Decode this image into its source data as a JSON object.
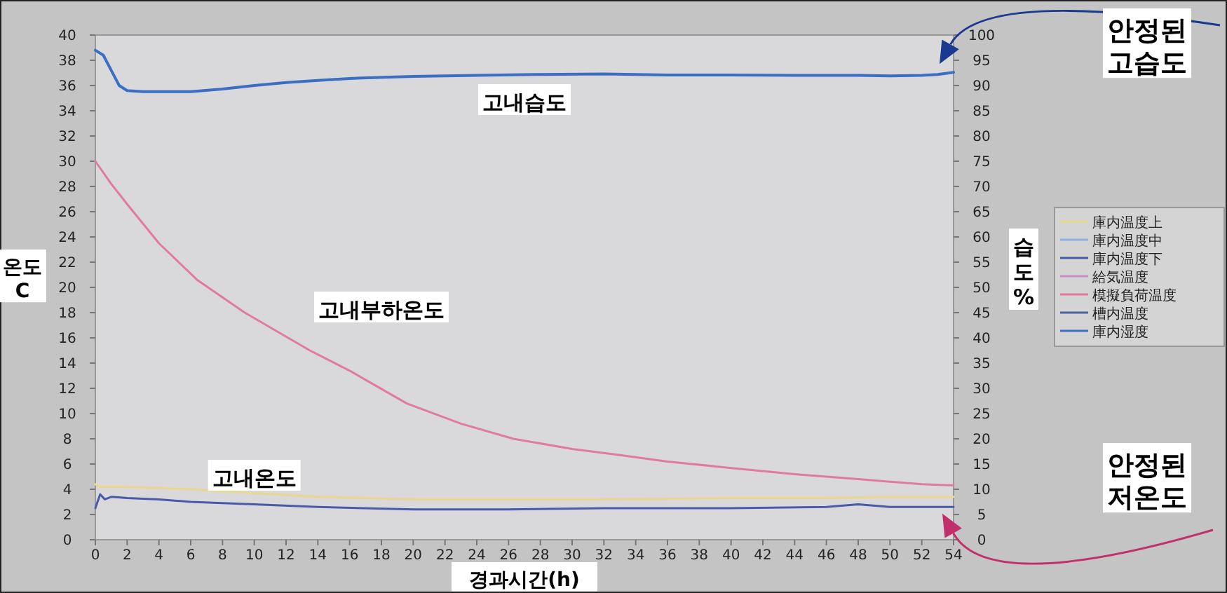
{
  "chart_data": {
    "type": "line",
    "xlabel": "경과시간(h)",
    "ylabel": "온도 C",
    "y2label": "습도 %",
    "xlim": [
      0,
      54
    ],
    "xticks": [
      0,
      2,
      4,
      6,
      8,
      10,
      12,
      14,
      16,
      18,
      20,
      22,
      24,
      26,
      28,
      30,
      32,
      34,
      36,
      38,
      40,
      42,
      44,
      46,
      48,
      50,
      52,
      54
    ],
    "ylim": [
      0,
      40
    ],
    "yticks": [
      0,
      2,
      4,
      6,
      8,
      10,
      12,
      14,
      16,
      18,
      20,
      22,
      24,
      26,
      28,
      30,
      32,
      34,
      36,
      38,
      40
    ],
    "y2lim": [
      0,
      100
    ],
    "y2ticks": [
      0,
      5,
      10,
      15,
      20,
      25,
      30,
      35,
      40,
      45,
      50,
      55,
      60,
      65,
      70,
      75,
      80,
      85,
      90,
      95,
      100
    ],
    "legend": "right",
    "marker": "none",
    "line_style": "solid",
    "series": [
      {
        "name": "庫内温度上",
        "color": "#e8d890",
        "x": [
          0,
          0.3,
          2,
          6,
          10,
          14,
          20,
          26,
          32,
          40,
          46,
          50,
          54
        ],
        "values": [
          4.4,
          4.2,
          4.2,
          4,
          3.7,
          3.4,
          3.2,
          3.2,
          3.2,
          3.3,
          3.3,
          3.4,
          3.4
        ]
      },
      {
        "name": "庫内温度中",
        "color": "#8fb0e0",
        "values": [
          null
        ]
      },
      {
        "name": "庫内温度下",
        "color": "#4a5aa8",
        "x": [
          0,
          0.3,
          0.6,
          1,
          2,
          4,
          6,
          10,
          14,
          20,
          26,
          32,
          40,
          46,
          48,
          50,
          54
        ],
        "values": [
          2.5,
          3.6,
          3.2,
          3.4,
          3.3,
          3.2,
          3.0,
          2.8,
          2.6,
          2.4,
          2.4,
          2.5,
          2.5,
          2.6,
          2.8,
          2.6,
          2.6
        ]
      },
      {
        "name": "給気温度",
        "color": "#c890c0",
        "values": [
          null
        ]
      },
      {
        "name": "模擬負荷温度",
        "color": "#e07aa0",
        "x": [
          0,
          1,
          2,
          4,
          6.4,
          9.4,
          13.5,
          16,
          19.6,
          23,
          26.3,
          30,
          33.1,
          36,
          39.9,
          44,
          48,
          52,
          54
        ],
        "values": [
          30,
          28.2,
          26.6,
          23.5,
          20.6,
          18,
          15,
          13.4,
          10.8,
          9.2,
          8,
          7.2,
          6.7,
          6.2,
          5.7,
          5.2,
          4.8,
          4.4,
          4.3
        ]
      },
      {
        "name": "槽内温度",
        "color": "#5060a0",
        "values": [
          null
        ]
      },
      {
        "name": "庫内湿度",
        "color": "#3a6fc4",
        "axis": "y2",
        "x": [
          0,
          0.5,
          1,
          1.5,
          2,
          3,
          4,
          6,
          8,
          10,
          12,
          14,
          16,
          20,
          24,
          28,
          32,
          36,
          40,
          44,
          48,
          50,
          52,
          53,
          54
        ],
        "values": [
          97,
          96,
          93,
          90,
          89,
          88.8,
          88.8,
          88.8,
          89.3,
          90,
          90.6,
          91,
          91.4,
          91.8,
          92,
          92.2,
          92.3,
          92.1,
          92.1,
          92,
          92,
          91.9,
          92,
          92.2,
          92.6
        ]
      }
    ],
    "annotations": [
      "고내습도",
      "고내부하온도",
      "고내온도",
      "안정된 고습도",
      "안정된 저온도"
    ]
  }
}
